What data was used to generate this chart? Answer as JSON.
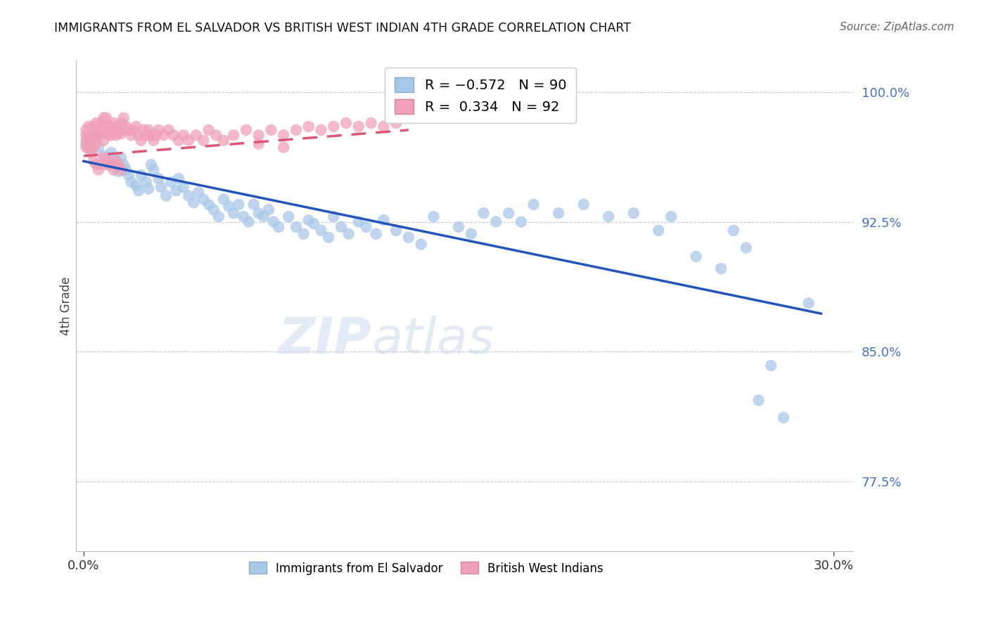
{
  "title": "IMMIGRANTS FROM EL SALVADOR VS BRITISH WEST INDIAN 4TH GRADE CORRELATION CHART",
  "source": "Source: ZipAtlas.com",
  "ylabel": "4th Grade",
  "y_ticks": [
    0.775,
    0.85,
    0.925,
    1.0
  ],
  "y_tick_labels": [
    "77.5%",
    "85.0%",
    "92.5%",
    "100.0%"
  ],
  "y_min": 0.735,
  "y_max": 1.018,
  "x_min": -0.003,
  "x_max": 0.308,
  "blue_color": "#a8c8e8",
  "pink_color": "#f0a0b8",
  "blue_line_color": "#2255bb",
  "pink_line_color": "#e05575",
  "blue_line_x0": 0.0,
  "blue_line_y0": 0.96,
  "blue_line_x1": 0.295,
  "blue_line_y1": 0.872,
  "pink_line_x0": 0.0,
  "pink_line_y0": 0.963,
  "pink_line_x1": 0.13,
  "pink_line_y1": 0.978,
  "watermark_zip": "ZIP",
  "watermark_atlas": "atlas",
  "legend_label1": "R = -0.572   N = 90",
  "legend_label2": "R =  0.334   N = 92",
  "legend_bot_label1": "Immigrants from El Salvador",
  "legend_bot_label2": "British West Indians",
  "blue_x": [
    0.001,
    0.002,
    0.003,
    0.004,
    0.005,
    0.006,
    0.008,
    0.009,
    0.01,
    0.011,
    0.012,
    0.013,
    0.014,
    0.015,
    0.016,
    0.017,
    0.018,
    0.019,
    0.021,
    0.022,
    0.023,
    0.025,
    0.026,
    0.027,
    0.028,
    0.03,
    0.031,
    0.033,
    0.035,
    0.037,
    0.038,
    0.04,
    0.042,
    0.044,
    0.046,
    0.048,
    0.05,
    0.052,
    0.054,
    0.056,
    0.058,
    0.06,
    0.062,
    0.064,
    0.066,
    0.068,
    0.07,
    0.072,
    0.074,
    0.076,
    0.078,
    0.082,
    0.085,
    0.088,
    0.09,
    0.092,
    0.095,
    0.098,
    0.1,
    0.103,
    0.106,
    0.11,
    0.113,
    0.117,
    0.12,
    0.125,
    0.13,
    0.135,
    0.14,
    0.15,
    0.155,
    0.16,
    0.165,
    0.17,
    0.175,
    0.18,
    0.19,
    0.2,
    0.21,
    0.22,
    0.23,
    0.235,
    0.245,
    0.255,
    0.26,
    0.265,
    0.27,
    0.275,
    0.28,
    0.29
  ],
  "blue_y": [
    0.97,
    0.968,
    0.965,
    0.972,
    0.975,
    0.968,
    0.963,
    0.96,
    0.958,
    0.965,
    0.962,
    0.958,
    0.954,
    0.962,
    0.958,
    0.955,
    0.952,
    0.948,
    0.946,
    0.943,
    0.952,
    0.948,
    0.944,
    0.958,
    0.955,
    0.95,
    0.945,
    0.94,
    0.948,
    0.943,
    0.95,
    0.945,
    0.94,
    0.936,
    0.942,
    0.938,
    0.935,
    0.932,
    0.928,
    0.938,
    0.934,
    0.93,
    0.935,
    0.928,
    0.925,
    0.935,
    0.93,
    0.928,
    0.932,
    0.925,
    0.922,
    0.928,
    0.922,
    0.918,
    0.926,
    0.924,
    0.92,
    0.916,
    0.928,
    0.922,
    0.918,
    0.925,
    0.922,
    0.918,
    0.926,
    0.92,
    0.916,
    0.912,
    0.928,
    0.922,
    0.918,
    0.93,
    0.925,
    0.93,
    0.925,
    0.935,
    0.93,
    0.935,
    0.928,
    0.93,
    0.92,
    0.928,
    0.905,
    0.898,
    0.92,
    0.91,
    0.822,
    0.842,
    0.812,
    0.878
  ],
  "pink_x": [
    0.001,
    0.001,
    0.001,
    0.001,
    0.002,
    0.002,
    0.002,
    0.003,
    0.003,
    0.003,
    0.004,
    0.004,
    0.004,
    0.005,
    0.005,
    0.005,
    0.006,
    0.006,
    0.007,
    0.007,
    0.008,
    0.008,
    0.008,
    0.009,
    0.009,
    0.01,
    0.01,
    0.011,
    0.011,
    0.012,
    0.012,
    0.013,
    0.013,
    0.014,
    0.015,
    0.015,
    0.016,
    0.016,
    0.017,
    0.018,
    0.019,
    0.02,
    0.021,
    0.022,
    0.023,
    0.024,
    0.025,
    0.026,
    0.027,
    0.028,
    0.029,
    0.03,
    0.032,
    0.034,
    0.036,
    0.038,
    0.04,
    0.042,
    0.045,
    0.048,
    0.05,
    0.053,
    0.056,
    0.06,
    0.065,
    0.07,
    0.075,
    0.08,
    0.085,
    0.09,
    0.095,
    0.1,
    0.105,
    0.11,
    0.115,
    0.12,
    0.125,
    0.13,
    0.07,
    0.08,
    0.004,
    0.005,
    0.006,
    0.007,
    0.008,
    0.009,
    0.01,
    0.011,
    0.012,
    0.013,
    0.014,
    0.015
  ],
  "pink_y": [
    0.978,
    0.972,
    0.968,
    0.975,
    0.98,
    0.975,
    0.968,
    0.978,
    0.972,
    0.965,
    0.98,
    0.975,
    0.968,
    0.982,
    0.976,
    0.97,
    0.98,
    0.975,
    0.982,
    0.976,
    0.985,
    0.978,
    0.972,
    0.985,
    0.978,
    0.98,
    0.975,
    0.98,
    0.975,
    0.982,
    0.976,
    0.98,
    0.975,
    0.978,
    0.982,
    0.976,
    0.985,
    0.978,
    0.98,
    0.978,
    0.975,
    0.978,
    0.98,
    0.975,
    0.972,
    0.978,
    0.975,
    0.978,
    0.975,
    0.972,
    0.975,
    0.978,
    0.975,
    0.978,
    0.975,
    0.972,
    0.975,
    0.972,
    0.975,
    0.972,
    0.978,
    0.975,
    0.972,
    0.975,
    0.978,
    0.975,
    0.978,
    0.975,
    0.978,
    0.98,
    0.978,
    0.98,
    0.982,
    0.98,
    0.982,
    0.98,
    0.982,
    0.985,
    0.97,
    0.968,
    0.96,
    0.958,
    0.955,
    0.958,
    0.962,
    0.958,
    0.96,
    0.958,
    0.955,
    0.96,
    0.958,
    0.955
  ]
}
